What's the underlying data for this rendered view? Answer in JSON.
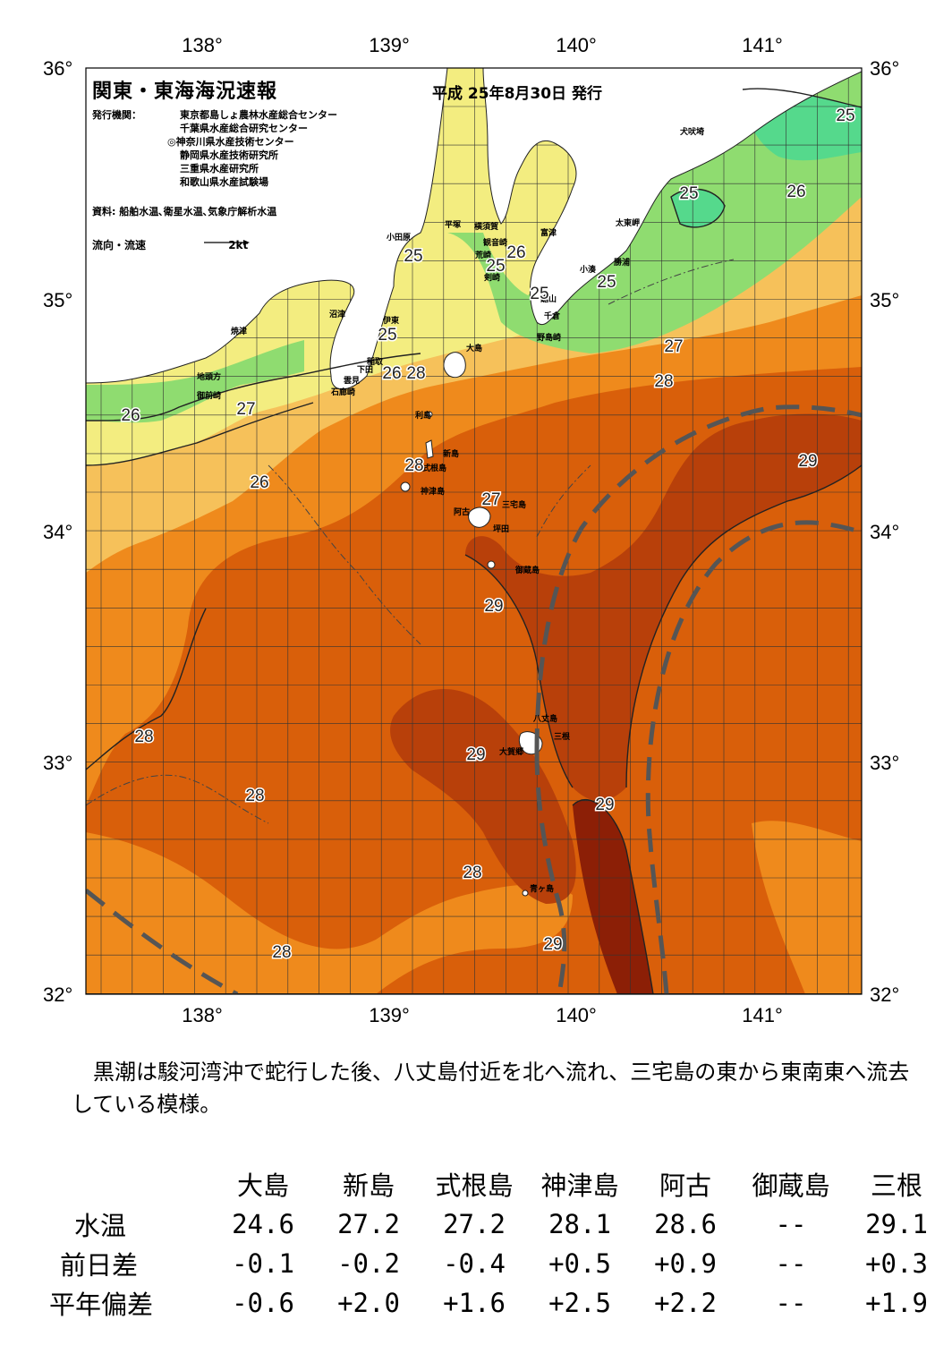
{
  "header": {
    "title": "関東・東海海況速報",
    "issue_date": "平成 25年8月30日 発行",
    "agency_label": "発行機関：",
    "agencies": [
      "東京都島しょ農林水産総合センター",
      "千葉県水産総合研究センター",
      "◎神奈川県水産技術センター",
      "静岡県水産技術研究所",
      "三重県水産研究所",
      "和歌山県水産試験場"
    ],
    "source": "資料: 船舶水温､衛星水温､気象庁解析水温",
    "flow_label": "流向・流速",
    "flow_scale": "2kt"
  },
  "axes": {
    "lon_labels": [
      "138°",
      "139°",
      "140°",
      "141°"
    ],
    "lat_labels": [
      "36°",
      "35°",
      "34°",
      "33°",
      "32°"
    ]
  },
  "colors": {
    "t29": "#b8400a",
    "t28": "#d95f0a",
    "t27": "#ef8a1c",
    "t26": "#f6c15a",
    "t25": "#f3ed80",
    "t24": "#8fdc70",
    "t23": "#55d98c",
    "land": "#ffffff",
    "kuroshio": "#555555"
  },
  "place_names": [
    "小田原",
    "平塚",
    "横須賀",
    "観音崎",
    "富津",
    "荒崎",
    "剣崎",
    "太東岬",
    "勝浦",
    "小湊",
    "鋸山",
    "千倉",
    "野島崎",
    "犬吠埼",
    "沼津",
    "伊東",
    "焼津",
    "稲取",
    "下田",
    "雲見",
    "石廊崎",
    "地頭方",
    "御前崎",
    "大島",
    "利島",
    "新島",
    "式根島",
    "神津島",
    "阿古",
    "三宅島",
    "坪田",
    "御蔵島",
    "八丈島",
    "三根",
    "大賀郷",
    "青ヶ島"
  ],
  "isotherm_labels": [
    "25",
    "25",
    "25",
    "25",
    "25",
    "25",
    "25",
    "26",
    "26",
    "26",
    "26",
    "26",
    "27",
    "27",
    "27",
    "28",
    "28",
    "28",
    "28",
    "28",
    "28",
    "28",
    "29",
    "29",
    "29",
    "29"
  ],
  "summary": "黒潮は駿河湾沖で蛇行した後、八丈島付近を北へ流れ、三宅島の東から東南東へ流去している模様。",
  "stats": {
    "columns": [
      "大島",
      "新島",
      "式根島",
      "神津島",
      "阿古",
      "御蔵島",
      "三根"
    ],
    "rows": [
      {
        "label": "水温",
        "values": [
          "24.6",
          "27.2",
          "27.2",
          "28.1",
          "28.6",
          "--",
          "29.1"
        ]
      },
      {
        "label": "前日差",
        "values": [
          "-0.1",
          "-0.2",
          "-0.4",
          "+0.5",
          "+0.9",
          "--",
          "+0.3"
        ]
      },
      {
        "label": "平年偏差",
        "values": [
          "-0.6",
          "+2.0",
          "+1.6",
          "+2.5",
          "+2.2",
          "--",
          "+1.9"
        ]
      }
    ]
  }
}
